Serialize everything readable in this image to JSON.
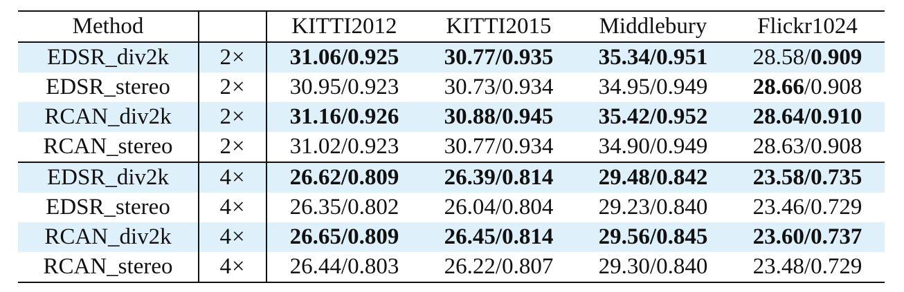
{
  "table": {
    "headers": {
      "method": "Method",
      "scale": "",
      "kitti2012": "KITTI2012",
      "kitti2015": "KITTI2015",
      "middlebury": "Middlebury",
      "flickr1024": "Flickr1024"
    },
    "rows": [
      {
        "method": "EDSR_div2k",
        "scale": "2×",
        "k12_psnr": "31.06",
        "k12_ssim": "0.925",
        "k15_psnr": "30.77",
        "k15_ssim": "0.935",
        "mid_psnr": "35.34",
        "mid_ssim": "0.951",
        "fl_psnr": "28.58",
        "fl_ssim": "0.909",
        "bold": {
          "k12_psnr": true,
          "k12_ssim": true,
          "k15_psnr": true,
          "k15_ssim": true,
          "mid_psnr": true,
          "mid_ssim": true,
          "fl_psnr": false,
          "fl_ssim": true
        },
        "shaded": true
      },
      {
        "method": "EDSR_stereo",
        "scale": "2×",
        "k12_psnr": "30.95",
        "k12_ssim": "0.923",
        "k15_psnr": "30.73",
        "k15_ssim": "0.934",
        "mid_psnr": "34.95",
        "mid_ssim": "0.949",
        "fl_psnr": "28.66",
        "fl_ssim": "0.908",
        "bold": {
          "k12_psnr": false,
          "k12_ssim": false,
          "k15_psnr": false,
          "k15_ssim": false,
          "mid_psnr": false,
          "mid_ssim": false,
          "fl_psnr": true,
          "fl_ssim": false
        },
        "shaded": false
      },
      {
        "method": "RCAN_div2k",
        "scale": "2×",
        "k12_psnr": "31.16",
        "k12_ssim": "0.926",
        "k15_psnr": "30.88",
        "k15_ssim": "0.945",
        "mid_psnr": "35.42",
        "mid_ssim": "0.952",
        "fl_psnr": "28.64",
        "fl_ssim": "0.910",
        "bold": {
          "k12_psnr": true,
          "k12_ssim": true,
          "k15_psnr": true,
          "k15_ssim": true,
          "mid_psnr": true,
          "mid_ssim": true,
          "fl_psnr": true,
          "fl_ssim": true
        },
        "shaded": true
      },
      {
        "method": "RCAN_stereo",
        "scale": "2×",
        "k12_psnr": "31.02",
        "k12_ssim": "0.923",
        "k15_psnr": "30.77",
        "k15_ssim": "0.934",
        "mid_psnr": "34.90",
        "mid_ssim": "0.949",
        "fl_psnr": "28.63",
        "fl_ssim": "0.908",
        "bold": {
          "k12_psnr": false,
          "k12_ssim": false,
          "k15_psnr": false,
          "k15_ssim": false,
          "mid_psnr": false,
          "mid_ssim": false,
          "fl_psnr": false,
          "fl_ssim": false
        },
        "shaded": false
      },
      {
        "method": "EDSR_div2k",
        "scale": "4×",
        "k12_psnr": "26.62",
        "k12_ssim": "0.809",
        "k15_psnr": "26.39",
        "k15_ssim": "0.814",
        "mid_psnr": "29.48",
        "mid_ssim": "0.842",
        "fl_psnr": "23.58",
        "fl_ssim": "0.735",
        "bold": {
          "k12_psnr": true,
          "k12_ssim": true,
          "k15_psnr": true,
          "k15_ssim": true,
          "mid_psnr": true,
          "mid_ssim": true,
          "fl_psnr": true,
          "fl_ssim": true
        },
        "shaded": true
      },
      {
        "method": "EDSR_stereo",
        "scale": "4×",
        "k12_psnr": "26.35",
        "k12_ssim": "0.802",
        "k15_psnr": "26.04",
        "k15_ssim": "0.804",
        "mid_psnr": "29.23",
        "mid_ssim": "0.840",
        "fl_psnr": "23.46",
        "fl_ssim": "0.729",
        "bold": {
          "k12_psnr": false,
          "k12_ssim": false,
          "k15_psnr": false,
          "k15_ssim": false,
          "mid_psnr": false,
          "mid_ssim": false,
          "fl_psnr": false,
          "fl_ssim": false
        },
        "shaded": false
      },
      {
        "method": "RCAN_div2k",
        "scale": "4×",
        "k12_psnr": "26.65",
        "k12_ssim": "0.809",
        "k15_psnr": "26.45",
        "k15_ssim": "0.814",
        "mid_psnr": "29.56",
        "mid_ssim": "0.845",
        "fl_psnr": "23.60",
        "fl_ssim": "0.737",
        "bold": {
          "k12_psnr": true,
          "k12_ssim": true,
          "k15_psnr": true,
          "k15_ssim": true,
          "mid_psnr": true,
          "mid_ssim": true,
          "fl_psnr": true,
          "fl_ssim": true
        },
        "shaded": true
      },
      {
        "method": "RCAN_stereo",
        "scale": "4×",
        "k12_psnr": "26.44",
        "k12_ssim": "0.803",
        "k15_psnr": "26.22",
        "k15_ssim": "0.807",
        "mid_psnr": "29.30",
        "mid_ssim": "0.840",
        "fl_psnr": "23.48",
        "fl_ssim": "0.729",
        "bold": {
          "k12_psnr": false,
          "k12_ssim": false,
          "k15_psnr": false,
          "k15_ssim": false,
          "mid_psnr": false,
          "mid_ssim": false,
          "fl_psnr": false,
          "fl_ssim": false
        },
        "shaded": false
      }
    ]
  },
  "chart_data": {
    "type": "table",
    "columns": [
      "Method",
      "",
      "KITTI2012",
      "KITTI2015",
      "Middlebury",
      "Flickr1024"
    ],
    "rows": [
      [
        "EDSR_div2k",
        "2×",
        "31.06/0.925",
        "30.77/0.935",
        "35.34/0.951",
        "28.58/0.909"
      ],
      [
        "EDSR_stereo",
        "2×",
        "30.95/0.923",
        "30.73/0.934",
        "34.95/0.949",
        "28.66/0.908"
      ],
      [
        "RCAN_div2k",
        "2×",
        "31.16/0.926",
        "30.88/0.945",
        "35.42/0.952",
        "28.64/0.910"
      ],
      [
        "RCAN_stereo",
        "2×",
        "31.02/0.923",
        "30.77/0.934",
        "34.90/0.949",
        "28.63/0.908"
      ],
      [
        "EDSR_div2k",
        "4×",
        "26.62/0.809",
        "26.39/0.814",
        "29.48/0.842",
        "23.58/0.735"
      ],
      [
        "EDSR_stereo",
        "4×",
        "26.35/0.802",
        "26.04/0.804",
        "29.23/0.840",
        "23.46/0.729"
      ],
      [
        "RCAN_div2k",
        "4×",
        "26.65/0.809",
        "26.45/0.814",
        "29.56/0.845",
        "23.60/0.737"
      ],
      [
        "RCAN_stereo",
        "4×",
        "26.44/0.803",
        "26.22/0.807",
        "29.30/0.840",
        "23.48/0.729"
      ]
    ]
  }
}
